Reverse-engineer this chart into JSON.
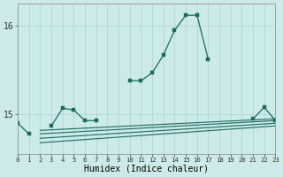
{
  "xlabel": "Humidex (Indice chaleur)",
  "x_ticks": [
    0,
    1,
    2,
    3,
    4,
    5,
    6,
    7,
    8,
    9,
    10,
    11,
    12,
    13,
    14,
    15,
    16,
    17,
    18,
    19,
    20,
    21,
    22,
    23
  ],
  "xlim": [
    0,
    23
  ],
  "ylim": [
    14.55,
    16.25
  ],
  "yticks": [
    15,
    16
  ],
  "bg_color": "#cceae7",
  "grid_color": "#aad4d0",
  "line_color": "#1a6b5e",
  "series_main": [
    14.9,
    14.78,
    null,
    14.87,
    15.07,
    15.05,
    14.93,
    14.93,
    null,
    null,
    15.38,
    15.38,
    15.47,
    15.67,
    15.95,
    16.12,
    16.12,
    15.62,
    null,
    null,
    null,
    14.95,
    15.08,
    14.93
  ],
  "flat_lines": [
    [
      2,
      14.82,
      23,
      14.95
    ],
    [
      2,
      14.78,
      23,
      14.93
    ],
    [
      2,
      14.73,
      23,
      14.9
    ],
    [
      2,
      14.68,
      23,
      14.87
    ]
  ]
}
